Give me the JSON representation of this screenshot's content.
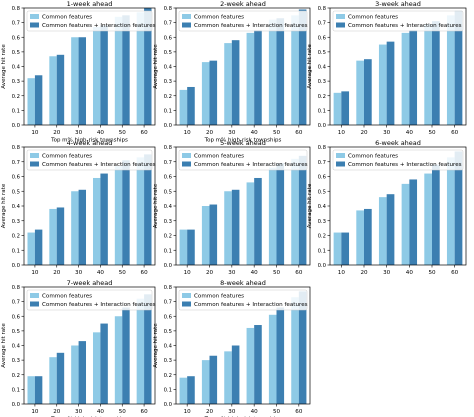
{
  "colors": {
    "common": "#8ecae6",
    "interaction": "#3c7fb1"
  },
  "chart_data": [
    {
      "type": "bar",
      "title": "1-week ahead",
      "categories": [
        "10",
        "20",
        "30",
        "40",
        "50",
        "60"
      ],
      "xlabel": "Top m% high-risk townships",
      "ylabel": "Average hit rate",
      "ylim": [
        0,
        0.8
      ],
      "yticks": [
        "0.0",
        "0.1",
        "0.2",
        "0.3",
        "0.4",
        "0.5",
        "0.6",
        "0.7",
        "0.8"
      ],
      "legend": "top-left",
      "series": [
        {
          "name": "Common features",
          "values": [
            0.32,
            0.47,
            0.6,
            0.67,
            0.74,
            0.77
          ]
        },
        {
          "name": "Common features + Interaction features",
          "values": [
            0.34,
            0.48,
            0.6,
            0.68,
            0.75,
            0.8
          ]
        }
      ]
    },
    {
      "type": "bar",
      "title": "2-week ahead",
      "categories": [
        "10",
        "20",
        "30",
        "40",
        "50",
        "60"
      ],
      "xlabel": "Top m% high-risk townships",
      "ylabel": "Average hit rate",
      "ylim": [
        0,
        0.8
      ],
      "yticks": [
        "0.0",
        "0.1",
        "0.2",
        "0.3",
        "0.4",
        "0.5",
        "0.6",
        "0.7",
        "0.8"
      ],
      "legend": "top-left",
      "series": [
        {
          "name": "Common features",
          "values": [
            0.24,
            0.43,
            0.56,
            0.63,
            0.72,
            0.75
          ]
        },
        {
          "name": "Common features + Interaction features",
          "values": [
            0.26,
            0.44,
            0.58,
            0.65,
            0.73,
            0.79
          ]
        }
      ]
    },
    {
      "type": "bar",
      "title": "3-week ahead",
      "categories": [
        "10",
        "20",
        "30",
        "40",
        "50",
        "60"
      ],
      "xlabel": "",
      "ylabel": "Average hit rate",
      "ylim": [
        0,
        0.8
      ],
      "yticks": [
        "0.0",
        "0.1",
        "0.2",
        "0.3",
        "0.4",
        "0.5",
        "0.6",
        "0.7",
        "0.8"
      ],
      "legend": "top-left",
      "series": [
        {
          "name": "Common features",
          "values": [
            0.22,
            0.44,
            0.55,
            0.63,
            0.69,
            0.75
          ]
        },
        {
          "name": "Common features + Interaction features",
          "values": [
            0.23,
            0.45,
            0.57,
            0.65,
            0.71,
            0.78
          ]
        }
      ]
    },
    {
      "type": "bar",
      "title": "4-week ahead",
      "categories": [
        "10",
        "20",
        "30",
        "40",
        "50",
        "60"
      ],
      "xlabel": "",
      "ylabel": "Average hit rate",
      "ylim": [
        0,
        0.8
      ],
      "yticks": [
        "0.0",
        "0.1",
        "0.2",
        "0.3",
        "0.4",
        "0.5",
        "0.6",
        "0.7",
        "0.8"
      ],
      "legend": "top-left",
      "series": [
        {
          "name": "Common features",
          "values": [
            0.22,
            0.38,
            0.5,
            0.59,
            0.67,
            0.73
          ]
        },
        {
          "name": "Common features + Interaction features",
          "values": [
            0.24,
            0.39,
            0.51,
            0.62,
            0.71,
            0.75
          ]
        }
      ]
    },
    {
      "type": "bar",
      "title": "5-week ahead",
      "categories": [
        "10",
        "20",
        "30",
        "40",
        "50",
        "60"
      ],
      "xlabel": "",
      "ylabel": "Average hit rate",
      "ylim": [
        0,
        0.8
      ],
      "yticks": [
        "0.0",
        "0.1",
        "0.2",
        "0.3",
        "0.4",
        "0.5",
        "0.6",
        "0.7",
        "0.8"
      ],
      "legend": "top-left",
      "series": [
        {
          "name": "Common features",
          "values": [
            0.24,
            0.4,
            0.5,
            0.56,
            0.66,
            0.72
          ]
        },
        {
          "name": "Common features + Interaction features",
          "values": [
            0.24,
            0.41,
            0.51,
            0.59,
            0.69,
            0.74
          ]
        }
      ]
    },
    {
      "type": "bar",
      "title": "6-week ahead",
      "categories": [
        "10",
        "20",
        "30",
        "40",
        "50",
        "60"
      ],
      "xlabel": "",
      "ylabel": "Average hit rate",
      "ylim": [
        0,
        0.8
      ],
      "yticks": [
        "0.0",
        "0.1",
        "0.2",
        "0.3",
        "0.4",
        "0.5",
        "0.6",
        "0.7",
        "0.8"
      ],
      "legend": "top-left",
      "series": [
        {
          "name": "Common features",
          "values": [
            0.22,
            0.37,
            0.46,
            0.55,
            0.62,
            0.73
          ]
        },
        {
          "name": "Common features + Interaction features",
          "values": [
            0.22,
            0.38,
            0.48,
            0.58,
            0.68,
            0.77
          ]
        }
      ]
    },
    {
      "type": "bar",
      "title": "7-week ahead",
      "categories": [
        "10",
        "20",
        "30",
        "40",
        "50",
        "60"
      ],
      "xlabel": "Top m% high-risk townships",
      "ylabel": "Average hit rate",
      "ylim": [
        0,
        0.8
      ],
      "yticks": [
        "0.0",
        "0.1",
        "0.2",
        "0.3",
        "0.4",
        "0.5",
        "0.6",
        "0.7",
        "0.8"
      ],
      "legend": "top-left",
      "series": [
        {
          "name": "Common features",
          "values": [
            0.19,
            0.32,
            0.4,
            0.49,
            0.6,
            0.72
          ]
        },
        {
          "name": "Common features + Interaction features",
          "values": [
            0.19,
            0.35,
            0.43,
            0.55,
            0.66,
            0.75
          ]
        }
      ]
    },
    {
      "type": "bar",
      "title": "8-week ahead",
      "categories": [
        "10",
        "20",
        "30",
        "40",
        "50",
        "60"
      ],
      "xlabel": "Top m% high-risk townships",
      "ylabel": "Average hit rate",
      "ylim": [
        0,
        0.8
      ],
      "yticks": [
        "0.0",
        "0.1",
        "0.2",
        "0.3",
        "0.4",
        "0.5",
        "0.6",
        "0.7",
        "0.8"
      ],
      "legend": "top-left",
      "series": [
        {
          "name": "Common features",
          "values": [
            0.18,
            0.3,
            0.36,
            0.52,
            0.61,
            0.73
          ]
        },
        {
          "name": "Common features + Interaction features",
          "values": [
            0.19,
            0.33,
            0.4,
            0.54,
            0.66,
            0.77
          ]
        }
      ]
    }
  ]
}
